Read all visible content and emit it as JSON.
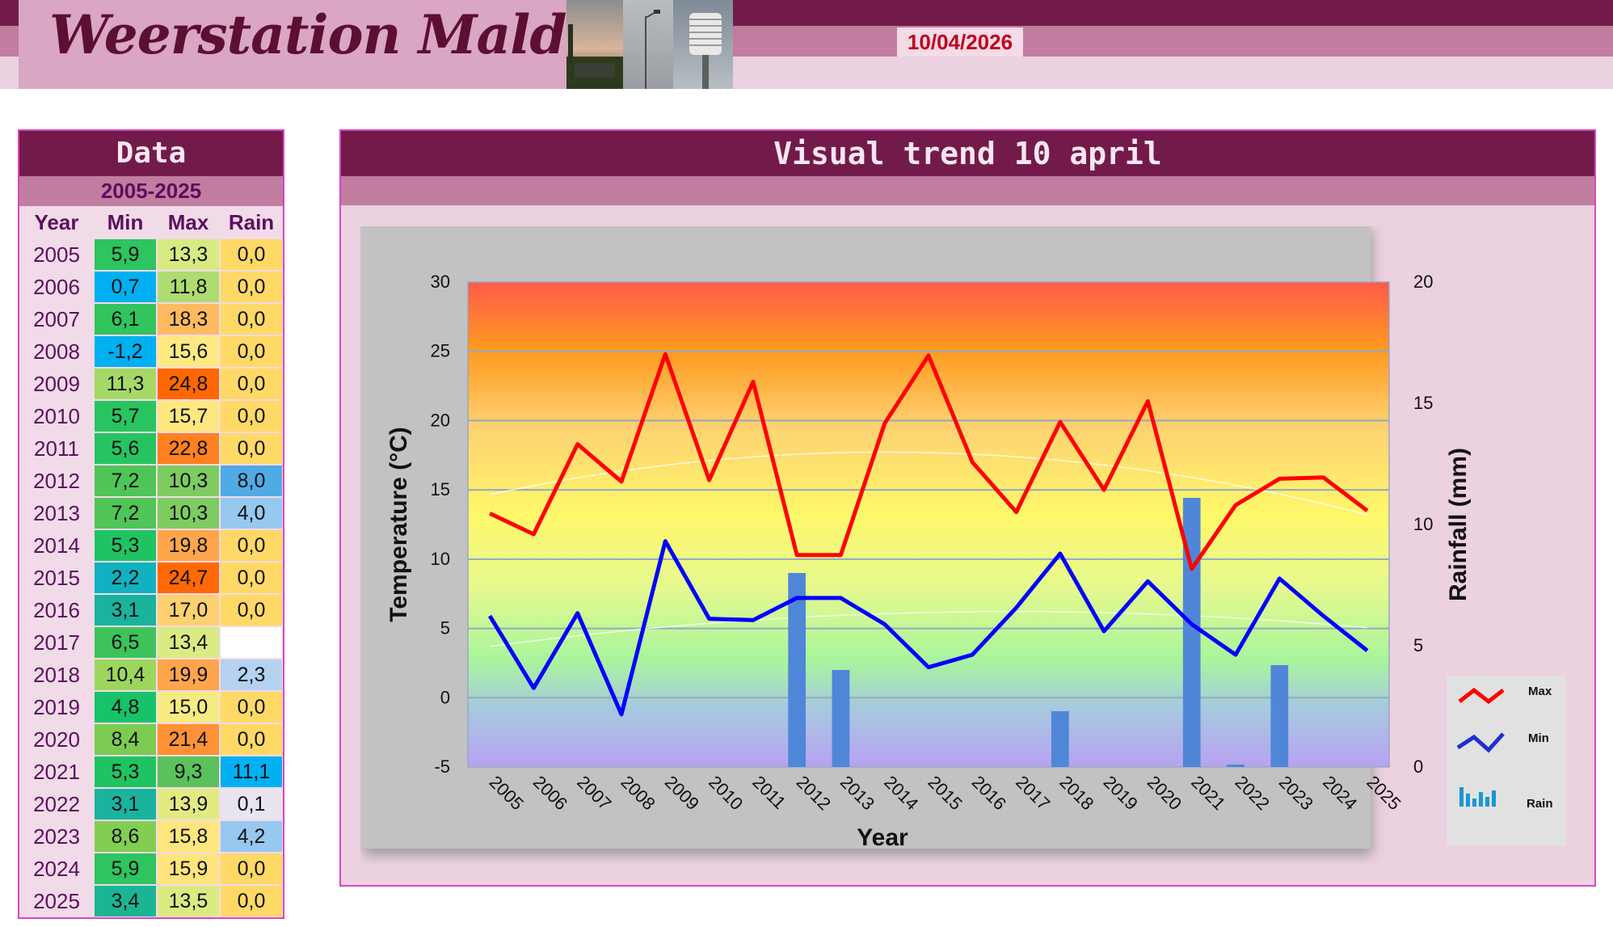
{
  "header": {
    "site_title": "Weerstation Malderen",
    "date": "10/04/2026"
  },
  "data_panel": {
    "title": "Data",
    "period": "2005-2025",
    "columns": [
      "Year",
      "Min",
      "Max",
      "Rain"
    ],
    "rows": [
      {
        "year": "2005",
        "min": "5,9",
        "max": "13,3",
        "rain": "0,0"
      },
      {
        "year": "2006",
        "min": "0,7",
        "max": "11,8",
        "rain": "0,0"
      },
      {
        "year": "2007",
        "min": "6,1",
        "max": "18,3",
        "rain": "0,0"
      },
      {
        "year": "2008",
        "min": "-1,2",
        "max": "15,6",
        "rain": "0,0"
      },
      {
        "year": "2009",
        "min": "11,3",
        "max": "24,8",
        "rain": "0,0"
      },
      {
        "year": "2010",
        "min": "5,7",
        "max": "15,7",
        "rain": "0,0"
      },
      {
        "year": "2011",
        "min": "5,6",
        "max": "22,8",
        "rain": "0,0"
      },
      {
        "year": "2012",
        "min": "7,2",
        "max": "10,3",
        "rain": "8,0"
      },
      {
        "year": "2013",
        "min": "7,2",
        "max": "10,3",
        "rain": "4,0"
      },
      {
        "year": "2014",
        "min": "5,3",
        "max": "19,8",
        "rain": "0,0"
      },
      {
        "year": "2015",
        "min": "2,2",
        "max": "24,7",
        "rain": "0,0"
      },
      {
        "year": "2016",
        "min": "3,1",
        "max": "17,0",
        "rain": "0,0"
      },
      {
        "year": "2017",
        "min": "6,5",
        "max": "13,4",
        "rain": ""
      },
      {
        "year": "2018",
        "min": "10,4",
        "max": "19,9",
        "rain": "2,3"
      },
      {
        "year": "2019",
        "min": "4,8",
        "max": "15,0",
        "rain": "0,0"
      },
      {
        "year": "2020",
        "min": "8,4",
        "max": "21,4",
        "rain": "0,0"
      },
      {
        "year": "2021",
        "min": "5,3",
        "max": "9,3",
        "rain": "11,1"
      },
      {
        "year": "2022",
        "min": "3,1",
        "max": "13,9",
        "rain": "0,1"
      },
      {
        "year": "2023",
        "min": "8,6",
        "max": "15,8",
        "rain": "4,2"
      },
      {
        "year": "2024",
        "min": "5,9",
        "max": "15,9",
        "rain": "0,0"
      },
      {
        "year": "2025",
        "min": "3,4",
        "max": "13,5",
        "rain": "0,0"
      }
    ]
  },
  "chart_panel": {
    "title": "Visual trend 10 april"
  },
  "colors": {
    "header_dark": "#721b4a",
    "header_mid": "#c07da0",
    "header_light": "#ecd1e0",
    "max_line": "#ff0000",
    "min_line": "#0000ff",
    "rain_bar": "#4f86d8"
  },
  "chart_data": {
    "type": "line",
    "xlabel": "Year",
    "ylabel": "Temperature (°C)",
    "y2label": "Rainfall (mm)",
    "ylim": [
      -5,
      30
    ],
    "y2lim": [
      0,
      20
    ],
    "yticks": [
      -5,
      0,
      5,
      10,
      15,
      20,
      25,
      30
    ],
    "y2ticks": [
      0,
      5,
      10,
      15,
      20
    ],
    "legend_position": "right",
    "grid": true,
    "background": "rainbow-gradient",
    "categories": [
      "2005",
      "2006",
      "2007",
      "2008",
      "2009",
      "2010",
      "2011",
      "2012",
      "2013",
      "2014",
      "2015",
      "2016",
      "2017",
      "2018",
      "2019",
      "2020",
      "2021",
      "2022",
      "2023",
      "2024",
      "2025"
    ],
    "series": [
      {
        "name": "Max",
        "type": "line",
        "axis": "left",
        "color": "#ff0000",
        "values": [
          13.3,
          11.8,
          18.3,
          15.6,
          24.8,
          15.7,
          22.8,
          10.3,
          10.3,
          19.8,
          24.7,
          17.0,
          13.4,
          19.9,
          15.0,
          21.4,
          9.3,
          13.9,
          15.8,
          15.9,
          13.5
        ]
      },
      {
        "name": "Min",
        "type": "line",
        "axis": "left",
        "color": "#0000ff",
        "values": [
          5.9,
          0.7,
          6.1,
          -1.2,
          11.3,
          5.7,
          5.6,
          7.2,
          7.2,
          5.3,
          2.2,
          3.1,
          6.5,
          10.4,
          4.8,
          8.4,
          5.3,
          3.1,
          8.6,
          5.9,
          3.4
        ]
      },
      {
        "name": "Rain",
        "type": "bar",
        "axis": "right",
        "color": "#4f86d8",
        "values": [
          0,
          0,
          0,
          0,
          0,
          0,
          0,
          8.0,
          4.0,
          0,
          0,
          0,
          null,
          2.3,
          0,
          0,
          11.1,
          0.1,
          4.2,
          0,
          0
        ]
      }
    ]
  }
}
